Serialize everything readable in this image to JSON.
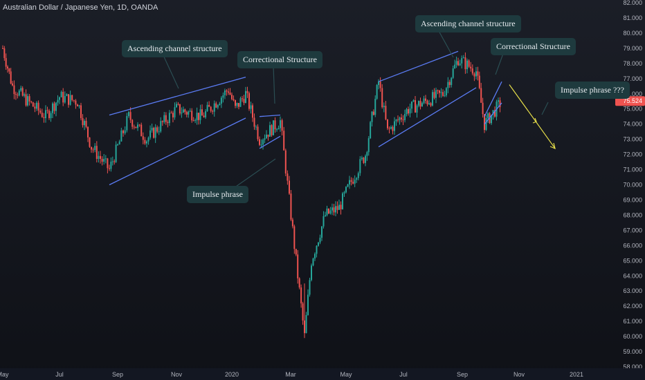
{
  "header": {
    "symbol_title": "Australian Dollar / Japanese Yen, 1D, OANDA"
  },
  "colors": {
    "background": "#131722",
    "up_candle": "#26a69a",
    "down_candle": "#ef5350",
    "channel_lines": "#5b7cf5",
    "arrow": "#e8e04a",
    "callout_bg": "#1e3a3e",
    "price_tag": "#ef5350",
    "axis_text": "#b2b5be"
  },
  "annotations": {
    "ascending_channel_1": "Ascending channel structure",
    "correctional_1": "Correctional Structure",
    "impulse_1": "Impulse phrase",
    "ascending_channel_2": "Ascending channel structure",
    "correctional_2": "Correctional Structure",
    "impulse_2": "Impulse phrase ???"
  },
  "chart_data": {
    "type": "candlestick",
    "title": "Australian Dollar / Japanese Yen, 1D, OANDA",
    "ylim": [
      58.0,
      82.0
    ],
    "y_ticks": [
      "82.000",
      "81.000",
      "80.000",
      "79.000",
      "78.000",
      "77.000",
      "76.000",
      "75.000",
      "74.000",
      "73.000",
      "72.000",
      "71.000",
      "70.000",
      "69.000",
      "68.000",
      "67.000",
      "66.000",
      "65.000",
      "64.000",
      "63.000",
      "62.000",
      "61.000",
      "60.000",
      "59.000",
      "58.000"
    ],
    "x_ticks": [
      "May",
      "Jul",
      "Sep",
      "Nov",
      "2020",
      "Mar",
      "May",
      "Jul",
      "Sep",
      "Nov",
      "2021"
    ],
    "last_price": "75.524",
    "approx_close_series": [
      {
        "x": "2019-05",
        "y": 79.0
      },
      {
        "x": "2019-05 late",
        "y": 76.5
      },
      {
        "x": "2019-06",
        "y": 75.5
      },
      {
        "x": "2019-06 late",
        "y": 74.5
      },
      {
        "x": "2019-07",
        "y": 75.8
      },
      {
        "x": "2019-07 mid",
        "y": 75.5
      },
      {
        "x": "2019-08",
        "y": 72.5
      },
      {
        "x": "2019-08 late",
        "y": 71.0
      },
      {
        "x": "2019-09",
        "y": 72.5
      },
      {
        "x": "2019-09 mid",
        "y": 74.5
      },
      {
        "x": "2019-10",
        "y": 73.0
      },
      {
        "x": "2019-11",
        "y": 75.0
      },
      {
        "x": "2019-12",
        "y": 74.5
      },
      {
        "x": "2019-12 late",
        "y": 76.3
      },
      {
        "x": "2020-01",
        "y": 75.0
      },
      {
        "x": "2020-01 mid",
        "y": 76.0
      },
      {
        "x": "2020-02",
        "y": 73.0
      },
      {
        "x": "2020-02 mid",
        "y": 74.2
      },
      {
        "x": "2020-03",
        "y": 69.0
      },
      {
        "x": "2020-03 mid",
        "y": 60.0
      },
      {
        "x": "2020-03 late",
        "y": 65.0
      },
      {
        "x": "2020-04",
        "y": 68.0
      },
      {
        "x": "2020-04 mid",
        "y": 68.5
      },
      {
        "x": "2020-05",
        "y": 70.0
      },
      {
        "x": "2020-05 late",
        "y": 72.0
      },
      {
        "x": "2020-06",
        "y": 76.8
      },
      {
        "x": "2020-06 mid",
        "y": 73.5
      },
      {
        "x": "2020-07",
        "y": 75.0
      },
      {
        "x": "2020-08",
        "y": 76.0
      },
      {
        "x": "2020-08 late",
        "y": 78.3
      },
      {
        "x": "2020-09",
        "y": 77.5
      },
      {
        "x": "2020-09 late",
        "y": 74.0
      },
      {
        "x": "2020-10",
        "y": 75.5
      }
    ],
    "trendlines": [
      {
        "name": "channel1_upper",
        "from": {
          "x": "2019-08 late",
          "y": 74.6
        },
        "to": {
          "x": "2020-01 mid",
          "y": 77.1
        }
      },
      {
        "name": "channel1_lower",
        "from": {
          "x": "2019-08 late",
          "y": 70.0
        },
        "to": {
          "x": "2020-01 mid",
          "y": 74.4
        }
      },
      {
        "name": "correction1_upper",
        "from": {
          "x": "2020-02",
          "y": 74.5
        },
        "to": {
          "x": "2020-02 mid",
          "y": 74.6
        }
      },
      {
        "name": "correction1_lower",
        "from": {
          "x": "2020-02",
          "y": 72.4
        },
        "to": {
          "x": "2020-02 mid",
          "y": 73.2
        }
      },
      {
        "name": "channel2_upper",
        "from": {
          "x": "2020-06",
          "y": 76.8
        },
        "to": {
          "x": "2020-08 late",
          "y": 78.8
        }
      },
      {
        "name": "channel2_lower",
        "from": {
          "x": "2020-06",
          "y": 72.5
        },
        "to": {
          "x": "2020-09",
          "y": 76.4
        }
      },
      {
        "name": "correction2_upper",
        "from": {
          "x": "2020-09 late",
          "y": 74.5
        },
        "to": {
          "x": "2020-10",
          "y": 76.8
        }
      },
      {
        "name": "correction2_lower",
        "from": {
          "x": "2020-09 late",
          "y": 74.0
        },
        "to": {
          "x": "2020-10",
          "y": 75.4
        }
      }
    ],
    "projection_arrow": {
      "from": {
        "x": "2020-10",
        "y": 76.6
      },
      "to": {
        "x": "2020-11",
        "y": 72.4
      }
    }
  }
}
